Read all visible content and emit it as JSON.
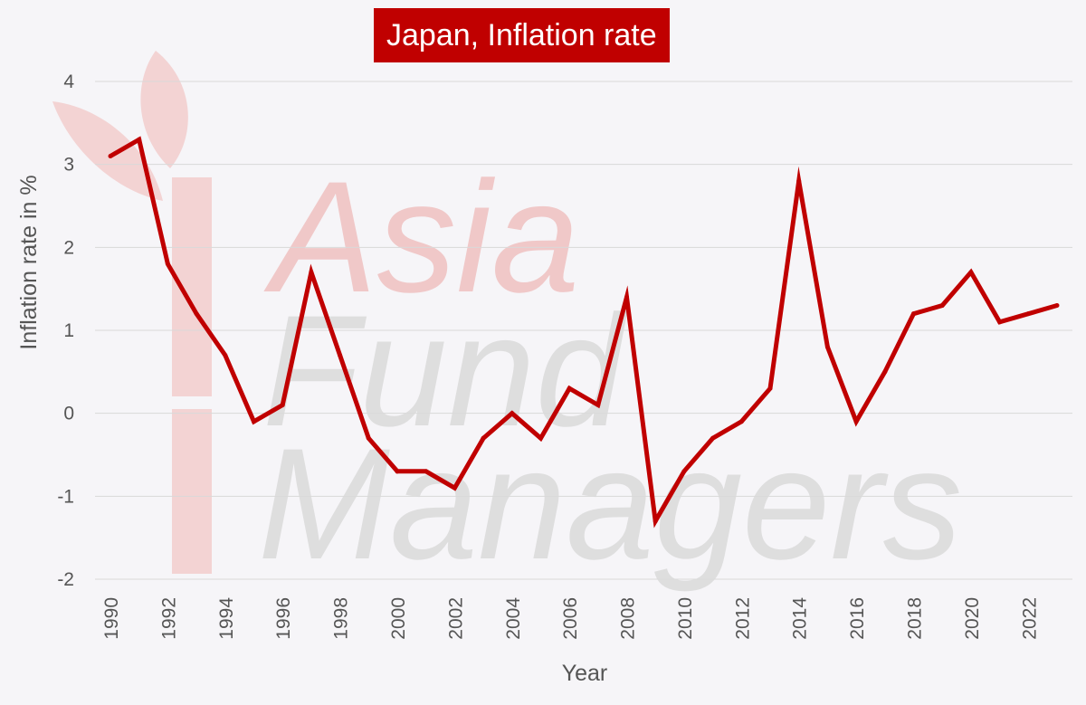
{
  "chart_data": {
    "type": "line",
    "title": "Japan, Inflation rate",
    "xlabel": "Year",
    "ylabel": "Inflation rate in %",
    "xlim": [
      1990,
      2023
    ],
    "ylim": [
      -2,
      4
    ],
    "yticks": [
      4,
      3,
      2,
      1,
      0,
      -1,
      -2
    ],
    "xticks": [
      1990,
      1992,
      1994,
      1996,
      1998,
      2000,
      2002,
      2004,
      2006,
      2008,
      2010,
      2012,
      2014,
      2016,
      2018,
      2020,
      2022
    ],
    "grid": true,
    "legend": "none",
    "line_color": "#c00000",
    "x": [
      1990,
      1991,
      1992,
      1993,
      1994,
      1995,
      1996,
      1997,
      1998,
      1999,
      2000,
      2001,
      2002,
      2003,
      2004,
      2005,
      2006,
      2007,
      2008,
      2009,
      2010,
      2011,
      2012,
      2013,
      2014,
      2015,
      2016,
      2017,
      2018,
      2019,
      2020,
      2021,
      2022,
      2023
    ],
    "values": [
      3.1,
      3.3,
      1.8,
      1.2,
      0.7,
      -0.1,
      0.1,
      1.7,
      0.7,
      -0.3,
      -0.7,
      -0.7,
      -0.9,
      -0.3,
      0.0,
      -0.3,
      0.3,
      0.1,
      1.4,
      -1.3,
      -0.7,
      -0.3,
      -0.1,
      0.3,
      2.8,
      0.8,
      -0.1,
      0.5,
      1.2,
      1.3,
      1.7,
      1.1,
      1.2,
      1.3
    ]
  },
  "watermark": {
    "lines": [
      "Asia",
      "Fund",
      "Managers"
    ],
    "colors": {
      "asia": "#f0c8c8",
      "other": "#dedede",
      "leaf": "#f2cccc"
    }
  }
}
